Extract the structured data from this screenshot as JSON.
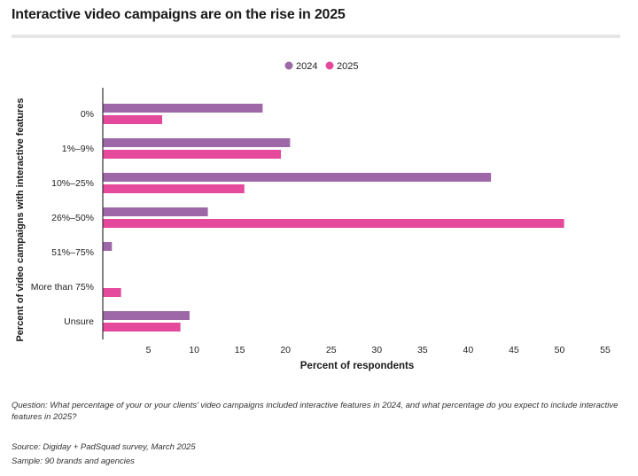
{
  "page": {
    "title": "Interactive video campaigns are on the rise in 2025",
    "question": "Question: What percentage of your or your clients’ video campaigns included interactive features in 2024, and what percentage do you expect to include interactive features in 2025?",
    "source": "Source: Digiday + PadSquad survey, March 2025",
    "sample": "Sample: 90 brands and agencies"
  },
  "colors": {
    "s2024": "#9e68a8",
    "s2025": "#e4499b",
    "axis": "#333333",
    "text": "#222222"
  },
  "chart_data": {
    "type": "bar",
    "orientation": "horizontal",
    "categories": [
      "0%",
      "1%–9%",
      "10%–25%",
      "26%–50%",
      "51%–75%",
      "More than 75%",
      "Unsure"
    ],
    "series": [
      {
        "name": "2024",
        "values": [
          17.5,
          20.5,
          42.5,
          11.5,
          1.0,
          0,
          9.5
        ]
      },
      {
        "name": "2025",
        "values": [
          6.5,
          19.5,
          15.5,
          50.5,
          0,
          2.0,
          8.5
        ]
      }
    ],
    "xlabel": "Percent of respondents",
    "ylabel": "Percent of video campaigns with interactive features",
    "xlim": [
      0,
      55
    ],
    "xticks": [
      5,
      10,
      15,
      20,
      25,
      30,
      35,
      40,
      45,
      50,
      55
    ],
    "legend_position": "top-center",
    "grid": false
  }
}
